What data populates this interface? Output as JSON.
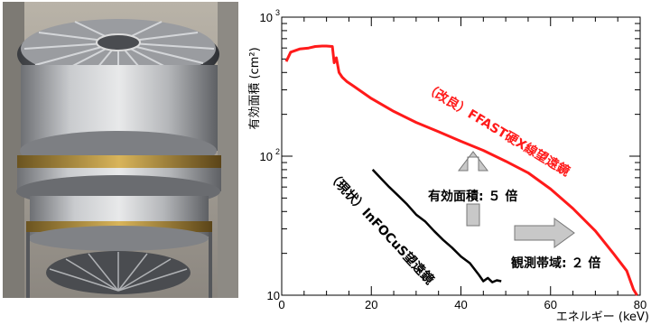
{
  "photo": {
    "subject": "telescope-hardware"
  },
  "chart_data": {
    "type": "line",
    "xlabel": "エネルギー (keV)",
    "ylabel": "有効面積 (cm²)",
    "ylog": true,
    "xlim": [
      0,
      80
    ],
    "ylim": [
      10,
      1000
    ],
    "x_ticks": [
      "0",
      "20",
      "40",
      "60",
      "80"
    ],
    "y_ticks": [
      {
        "base": "10",
        "exp": ""
      },
      {
        "base": "10",
        "exp": "2"
      },
      {
        "base": "10",
        "exp": "3"
      }
    ],
    "grid": false,
    "series": [
      {
        "color": "#ff1a1a",
        "x": [
          1,
          2,
          4,
          6,
          7.5,
          9,
          10,
          11.3,
          11.7,
          12.2,
          12.8,
          13.5,
          14.5,
          16,
          20,
          25,
          30,
          35,
          40,
          45,
          50,
          55,
          60,
          65,
          70,
          74,
          77,
          78.5,
          79.3
        ],
        "y": [
          480,
          560,
          590,
          600,
          615,
          620,
          620,
          615,
          470,
          510,
          400,
          370,
          345,
          320,
          260,
          210,
          175,
          150,
          128,
          110,
          92,
          76,
          58,
          42,
          29,
          20,
          15,
          11,
          10
        ]
      },
      {
        "color": "#000000",
        "x": [
          20.3,
          22,
          24,
          26,
          28,
          30,
          32,
          34,
          36,
          38,
          40,
          42,
          44,
          45,
          46,
          47,
          48,
          49
        ],
        "y": [
          80,
          70,
          60,
          52,
          45,
          38,
          34,
          29,
          25,
          22,
          19,
          17,
          14,
          12.6,
          13.3,
          12.4,
          12.8,
          12.6
        ]
      }
    ],
    "annotations": {
      "improved": "（改良）FFAST硬X線望遠鏡",
      "current": "（現状）InFOCuS望遠鏡",
      "area_gain": "有効面積: ５ 倍",
      "band_gain": "観測帯域: ２ 倍",
      "arrow_fill": "#c8c8c8"
    }
  }
}
